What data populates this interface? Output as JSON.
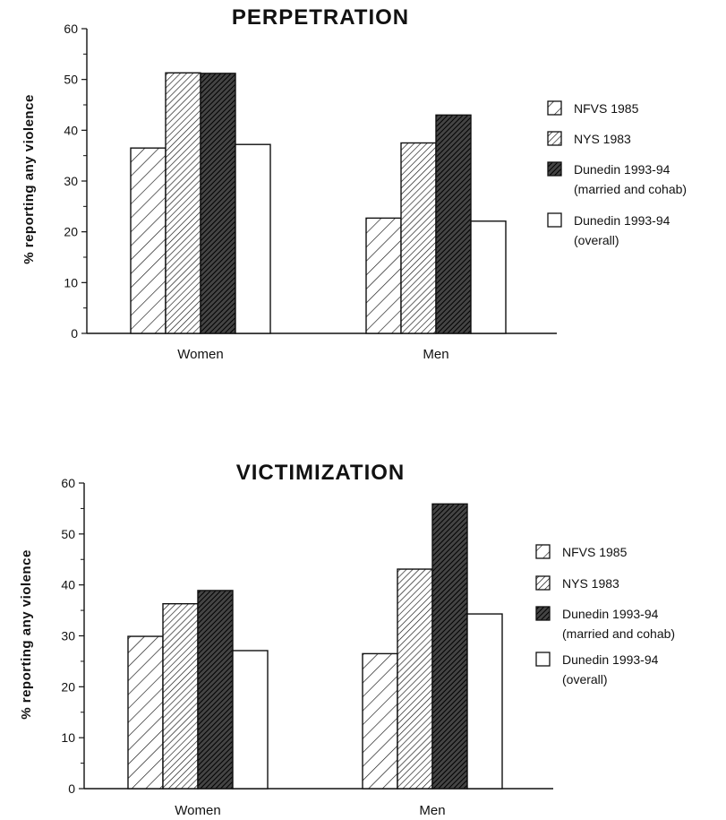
{
  "chart_data": [
    {
      "type": "bar",
      "title": "PERPETRATION",
      "ylabel": "% reporting any violence",
      "xlabel": "",
      "categories": [
        "Women",
        "Men"
      ],
      "ylim": [
        0,
        60
      ],
      "yticks": [
        0,
        10,
        20,
        30,
        40,
        50,
        60
      ],
      "series": [
        {
          "name": "NFVS 1985",
          "values": [
            36.5,
            22.7
          ]
        },
        {
          "name": "NYS 1983",
          "values": [
            51.3,
            37.5
          ]
        },
        {
          "name": "Dunedin 1993-94",
          "name_line2": "(married and cohab)",
          "values": [
            51.2,
            43.0
          ]
        },
        {
          "name": "Dunedin 1993-94",
          "name_line2": "(overall)",
          "values": [
            37.2,
            22.1
          ]
        }
      ],
      "legend": "right"
    },
    {
      "type": "bar",
      "title": "VICTIMIZATION",
      "ylabel": "% reporting any violence",
      "xlabel": "",
      "categories": [
        "Women",
        "Men"
      ],
      "ylim": [
        0,
        60
      ],
      "yticks": [
        0,
        10,
        20,
        30,
        40,
        50,
        60
      ],
      "series": [
        {
          "name": "NFVS 1985",
          "values": [
            29.9,
            26.5
          ]
        },
        {
          "name": "NYS 1983",
          "values": [
            36.3,
            43.1
          ]
        },
        {
          "name": "Dunedin 1993-94",
          "name_line2": "(married and cohab)",
          "values": [
            38.9,
            55.9
          ]
        },
        {
          "name": "Dunedin 1993-94",
          "name_line2": "(overall)",
          "values": [
            27.1,
            34.3
          ]
        }
      ],
      "legend": "right"
    }
  ],
  "colors": {
    "ink": "#111111",
    "background": "#ffffff"
  },
  "fill_styles": [
    "hatch-sparse",
    "hatch-medium",
    "hatch-dense",
    "solid-white"
  ]
}
